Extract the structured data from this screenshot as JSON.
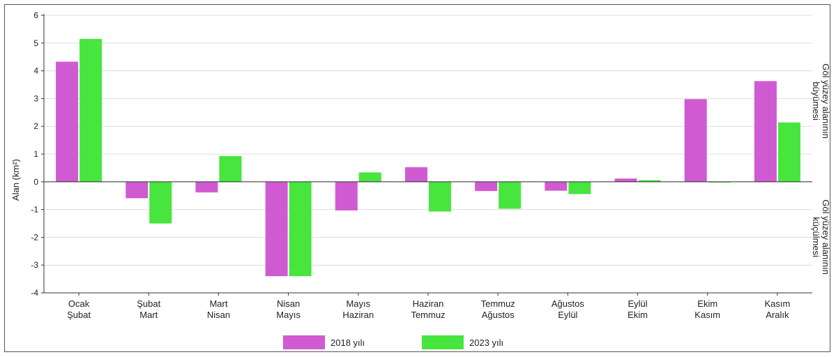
{
  "chart_data": {
    "type": "bar",
    "ylabel": "Alan (km²)",
    "ylim": [
      -4,
      6
    ],
    "yticks": [
      6,
      5,
      4,
      3,
      2,
      1,
      0,
      -1,
      -2,
      -3,
      -4
    ],
    "grid": true,
    "legend_position": "bottom-center",
    "categories": [
      [
        "Ocak",
        "Şubat"
      ],
      [
        "Şubat",
        "Mart"
      ],
      [
        "Mart",
        "Nisan"
      ],
      [
        "Nisan",
        "Mayıs"
      ],
      [
        "Mayıs",
        "Haziran"
      ],
      [
        "Haziran",
        "Temmuz"
      ],
      [
        "Temmuz",
        "Ağustos"
      ],
      [
        "Ağustos",
        "Eylül"
      ],
      [
        "Eylül",
        "Ekim"
      ],
      [
        "Ekim",
        "Kasım"
      ],
      [
        "Kasım",
        "Aralık"
      ]
    ],
    "series": [
      {
        "name": "2018 yılı",
        "color": "#d05ad2",
        "values": [
          4.33,
          -0.59,
          -0.38,
          -3.4,
          -1.03,
          0.53,
          -0.33,
          -0.32,
          0.12,
          2.98,
          3.63
        ]
      },
      {
        "name": "2023 yılı",
        "color": "#47e53e",
        "values": [
          5.15,
          -1.5,
          0.93,
          -3.4,
          0.34,
          -1.07,
          -0.97,
          -0.44,
          0.06,
          -0.02,
          2.14
        ]
      }
    ],
    "right_annotations": {
      "top": [
        "Göl yüzey alanının",
        "büyümesi"
      ],
      "bottom": [
        "Göl yüzey alanının",
        "küçülmesi"
      ]
    }
  }
}
